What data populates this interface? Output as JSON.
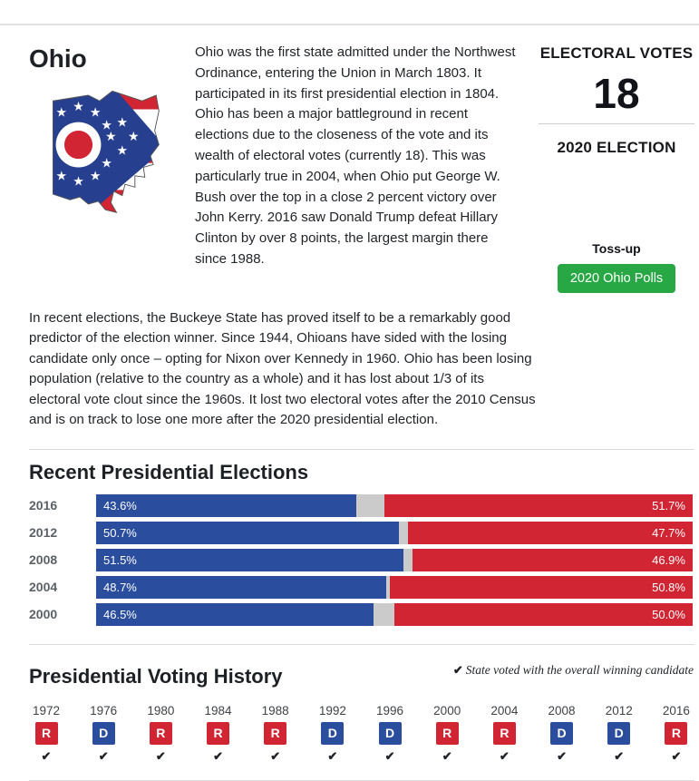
{
  "header": {
    "state_name": "Ohio"
  },
  "overview": {
    "paragraph1": "Ohio was the first state admitted under the Northwest Ordinance, entering the Union in March 1803. It participated in its first presidential election in 1804. Ohio has been a major battleground in recent elections due to the closeness of the vote and its wealth of electoral votes (currently 18). This was particularly true in 2004, when Ohio put George W. Bush over the top in a close 2 percent victory over John Kerry. 2016 saw Donald Trump defeat Hillary Clinton by over 8 points, the largest margin there since 1988.",
    "paragraph2": "In recent elections, the Buckeye State has proved itself to be a remarkably good predictor of the election winner. Since 1944, Ohioans have sided with the losing candidate only once – opting for Nixon over Kennedy in 1960. Ohio has been losing population (relative to the country as a whole) and it has lost about 1/3 of its electoral vote clout since the 1960s. It lost two electoral votes after the 2010 Census and is on track to lose one more after the 2020 presidential election."
  },
  "sidebar": {
    "electoral_votes_label": "ELECTORAL VOTES",
    "electoral_votes": "18",
    "election_label": "2020 ELECTION",
    "rating": "Toss-up",
    "polls_button": "2020 Ohio Polls"
  },
  "elections": {
    "title": "Recent Presidential Elections"
  },
  "chart_data": {
    "type": "bar",
    "title": "Recent Presidential Elections",
    "orientation": "horizontal-stacked",
    "categories": [
      "2016",
      "2012",
      "2008",
      "2004",
      "2000"
    ],
    "series": [
      {
        "name": "Democratic",
        "color": "#2a4d9e",
        "values": [
          43.6,
          50.7,
          51.5,
          48.7,
          46.5
        ]
      },
      {
        "name": "Republican",
        "color": "#d22533",
        "values": [
          51.7,
          47.7,
          46.9,
          50.8,
          50.0
        ]
      }
    ],
    "other_color": "#cbcbcb",
    "value_format": "percent",
    "xlim": [
      0,
      100
    ]
  },
  "history": {
    "title": "Presidential Voting History",
    "check_glyph": "✔",
    "legend_text": "State voted with the overall winning candidate",
    "items": [
      {
        "year": "1972",
        "party": "R",
        "voted_with_winner": true
      },
      {
        "year": "1976",
        "party": "D",
        "voted_with_winner": true
      },
      {
        "year": "1980",
        "party": "R",
        "voted_with_winner": true
      },
      {
        "year": "1984",
        "party": "R",
        "voted_with_winner": true
      },
      {
        "year": "1988",
        "party": "R",
        "voted_with_winner": true
      },
      {
        "year": "1992",
        "party": "D",
        "voted_with_winner": true
      },
      {
        "year": "1996",
        "party": "D",
        "voted_with_winner": true
      },
      {
        "year": "2000",
        "party": "R",
        "voted_with_winner": true
      },
      {
        "year": "2004",
        "party": "R",
        "voted_with_winner": true
      },
      {
        "year": "2008",
        "party": "D",
        "voted_with_winner": true
      },
      {
        "year": "2012",
        "party": "D",
        "voted_with_winner": true
      },
      {
        "year": "2016",
        "party": "R",
        "voted_with_winner": true
      }
    ]
  },
  "colors": {
    "democratic": "#2a4d9e",
    "republican": "#d22533",
    "other": "#cbcbcb",
    "button_green": "#28a745"
  }
}
